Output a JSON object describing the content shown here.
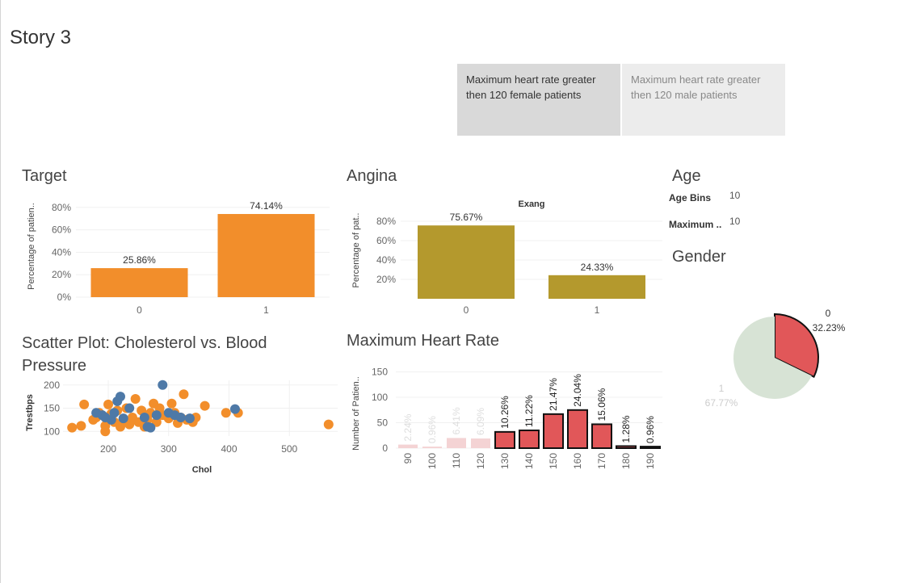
{
  "story": {
    "title": "Story 3"
  },
  "nav": [
    {
      "label": "Maximum heart rate greater then 120 female patients"
    },
    {
      "label": "Maximum heart rate greater then 120 male patients"
    }
  ],
  "colors": {
    "orange": "#f28e2b",
    "olive": "#b4992d",
    "blue": "#4e79a7",
    "red": "#e15759",
    "green_light": "#d7e3d5"
  },
  "target": {
    "title": "Target",
    "ylabel": "Percentage of patien..",
    "ticks": [
      "80%",
      "60%",
      "40%",
      "20%",
      "0%"
    ],
    "chart_data": {
      "type": "bar",
      "categories": [
        "0",
        "1"
      ],
      "values": [
        25.86,
        74.14
      ],
      "labels": [
        "25.86%",
        "74.14%"
      ],
      "ylim": [
        0,
        90
      ]
    }
  },
  "angina": {
    "title": "Angina",
    "header": "Exang",
    "ylabel": "Percentage of pat..",
    "ticks": [
      "80%",
      "60%",
      "40%",
      "20%"
    ],
    "chart_data": {
      "type": "bar",
      "categories": [
        "0",
        "1"
      ],
      "values": [
        75.67,
        24.33
      ],
      "labels": [
        "75.67%",
        "24.33%"
      ],
      "ylim": [
        0,
        90
      ]
    }
  },
  "age": {
    "title": "Age",
    "rows": [
      {
        "label": "Age Bins",
        "value": "10"
      },
      {
        "label": "Maximum ..",
        "value": "10"
      }
    ]
  },
  "gender": {
    "title": "Gender",
    "chart_data": {
      "type": "pie",
      "slices": [
        {
          "name": "0",
          "value": 32.23,
          "label": "32.23%"
        },
        {
          "name": "1",
          "value": 67.77,
          "label": "67.77%"
        }
      ]
    }
  },
  "scatter": {
    "title_line1": "Scatter Plot: Cholesterol vs. Blood",
    "title_line2": "Pressure",
    "xlabel": "Chol",
    "ylabel": "Trestbps",
    "xticks": [
      "200",
      "300",
      "400",
      "500"
    ],
    "yticks": [
      "200",
      "150",
      "100"
    ],
    "chart_data": {
      "type": "scatter",
      "xlim": [
        125,
        580
      ],
      "ylim": [
        90,
        210
      ],
      "series": [
        {
          "points": [
            [
              140,
              108
            ],
            [
              155,
              112
            ],
            [
              160,
              158
            ],
            [
              175,
              125
            ],
            [
              180,
              130
            ],
            [
              185,
              140
            ],
            [
              195,
              100
            ],
            [
              195,
              112
            ],
            [
              200,
              125
            ],
            [
              200,
              158
            ],
            [
              205,
              138
            ],
            [
              210,
              120
            ],
            [
              215,
              145
            ],
            [
              220,
              110
            ],
            [
              225,
              125
            ],
            [
              230,
              150
            ],
            [
              235,
              115
            ],
            [
              240,
              130
            ],
            [
              245,
              170
            ],
            [
              250,
              120
            ],
            [
              255,
              145
            ],
            [
              260,
              110
            ],
            [
              265,
              125
            ],
            [
              270,
              140
            ],
            [
              275,
              160
            ],
            [
              280,
              120
            ],
            [
              285,
              150
            ],
            [
              290,
              135
            ],
            [
              300,
              128
            ],
            [
              305,
              160
            ],
            [
              310,
              140
            ],
            [
              315,
              118
            ],
            [
              320,
              130
            ],
            [
              325,
              180
            ],
            [
              330,
              125
            ],
            [
              340,
              120
            ],
            [
              345,
              130
            ],
            [
              360,
              155
            ],
            [
              395,
              140
            ],
            [
              415,
              140
            ],
            [
              565,
              115
            ]
          ]
        },
        {
          "points": [
            [
              180,
              140
            ],
            [
              190,
              135
            ],
            [
              195,
              130
            ],
            [
              205,
              125
            ],
            [
              210,
              140
            ],
            [
              215,
              165
            ],
            [
              220,
              175
            ],
            [
              225,
              128
            ],
            [
              235,
              150
            ],
            [
              260,
              130
            ],
            [
              265,
              110
            ],
            [
              270,
              108
            ],
            [
              280,
              135
            ],
            [
              290,
              200
            ],
            [
              300,
              140
            ],
            [
              310,
              135
            ],
            [
              320,
              130
            ],
            [
              335,
              128
            ],
            [
              410,
              148
            ]
          ]
        }
      ]
    }
  },
  "mhr": {
    "title": "Maximum Heart Rate",
    "ylabel": "Number of Patien..",
    "yticks": [
      "150",
      "100",
      "50",
      "0"
    ],
    "chart_data": {
      "type": "bar",
      "categories": [
        "90",
        "100",
        "110",
        "120",
        "130",
        "140",
        "150",
        "160",
        "170",
        "180",
        "190"
      ],
      "values": [
        7,
        3,
        20,
        19,
        32,
        35,
        67,
        75,
        47,
        4,
        3
      ],
      "labels": [
        "2.24%",
        "0.96%",
        "6.41%",
        "6.09%",
        "10.26%",
        "11.22%",
        "21.47%",
        "24.04%",
        "15.06%",
        "1.28%",
        "0.96%"
      ],
      "highlighted": [
        false,
        false,
        false,
        false,
        true,
        true,
        true,
        true,
        true,
        true,
        true
      ],
      "ylim": [
        0,
        170
      ]
    }
  }
}
